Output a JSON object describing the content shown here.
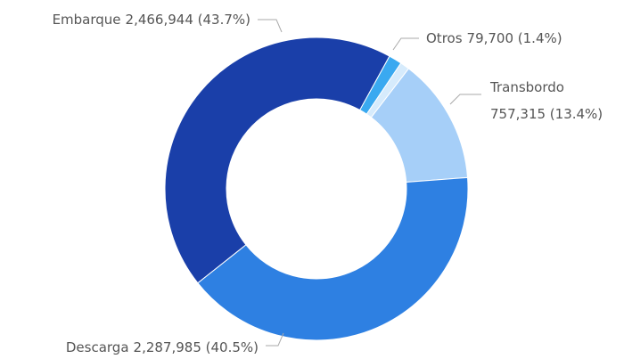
{
  "chart_data": {
    "type": "donut",
    "categories": [
      "Otros",
      null,
      "Transbordo",
      "Descarga",
      "Embarque"
    ],
    "values": [
      79700,
      56000,
      757315,
      2287985,
      2466944
    ],
    "value_labels": [
      "79,700 (1.4%)",
      null,
      "757,315 (13.4%)",
      "2,287,985 (40.5%)",
      "2,466,944 (43.7%)"
    ],
    "colors": [
      "#3aa9f0",
      "#d6ebfc",
      "#a6cff8",
      "#2e80e2",
      "#1a3fa9"
    ]
  }
}
